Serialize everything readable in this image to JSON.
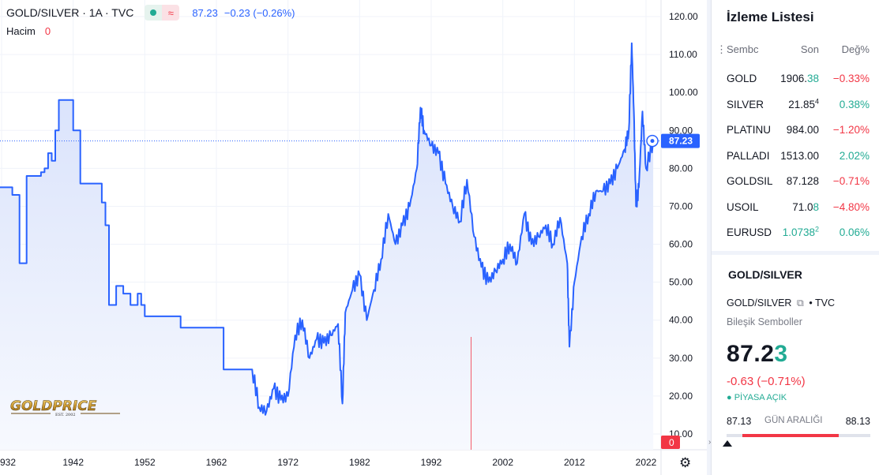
{
  "legend": {
    "title": "GOLD/SILVER · 1A · TVC",
    "approx": "≈",
    "price": "87.23",
    "change": "−0.23 (−0.26%)"
  },
  "volume": {
    "label": "Hacim",
    "value": "0"
  },
  "logo": {
    "text": "GOLDPRICE",
    "sub": "EST. 2002"
  },
  "colors": {
    "line": "#2962ff",
    "fill": "#e8eefc",
    "up": "#22ab94",
    "down": "#f23645"
  },
  "chart_data": {
    "type": "area",
    "x_ticks": [
      "932",
      "1942",
      "1952",
      "1962",
      "1972",
      "1982",
      "1992",
      "2002",
      "2012",
      "2022"
    ],
    "y_ticks": [
      "120.00",
      "110.00",
      "100.00",
      "90.00",
      "80.00",
      "70.00",
      "60.00",
      "50.00",
      "40.00",
      "30.00",
      "20.00",
      "10.00"
    ],
    "ylim": [
      10,
      120
    ],
    "xlim": [
      1930,
      2023.7
    ],
    "last_price_label": "87.23",
    "volume_badge": "0",
    "series": [
      {
        "x": [
          1930,
          1931,
          1933,
          1933.5,
          1934,
          1934.5,
          1935,
          1935.5,
          1937,
          1937.5,
          1938,
          1938.5,
          1939,
          1939.5,
          1940,
          1940.5,
          1941,
          1942,
          1942.5,
          1943,
          1944,
          1944.5,
          1945,
          1946,
          1946.5,
          1947,
          1948,
          1948.5,
          1949,
          1950,
          1951,
          1951.5,
          1952,
          1953,
          1954,
          1955,
          1956,
          1957,
          1958,
          1959,
          1960,
          1961,
          1962,
          1963,
          1964,
          1965,
          1966,
          1967,
          1968,
          1969,
          1970,
          1971,
          1972,
          1973,
          1974,
          1975,
          1976,
          1977,
          1978,
          1979,
          1979.6,
          1980,
          1981,
          1982,
          1983,
          1984,
          1985,
          1986,
          1987,
          1988,
          1989,
          1990,
          1990.5,
          1991,
          1992,
          1993,
          1994,
          1995,
          1996,
          1997,
          1998,
          1999,
          2000,
          2001,
          2002,
          2003,
          2004,
          2005,
          2006,
          2007,
          2008,
          2009,
          2010,
          2011,
          2011.3,
          2012,
          2013,
          2014,
          2015,
          2016,
          2017,
          2018,
          2019,
          2019.6,
          2020,
          2020.3,
          2020.6,
          2021,
          2021.5,
          2022,
          2023
        ],
        "y": [
          77,
          75,
          75,
          73,
          73,
          55,
          55,
          78,
          78,
          79,
          80,
          84,
          82,
          90,
          98,
          98,
          98,
          90,
          90,
          76,
          76,
          76,
          76,
          71,
          65,
          44,
          49,
          49,
          47,
          44,
          47,
          44,
          41,
          41,
          41,
          41,
          41,
          38,
          38,
          38,
          38,
          38,
          38,
          27,
          27,
          27,
          27,
          27,
          17,
          16,
          22,
          19,
          20,
          36,
          40,
          30,
          35,
          34,
          36,
          39,
          18,
          42,
          48,
          52,
          40,
          48,
          56,
          68,
          60,
          65,
          70,
          80,
          96,
          90,
          86,
          84,
          76,
          70,
          66,
          77,
          62,
          54,
          50,
          53,
          56,
          60,
          55,
          68,
          60,
          62,
          65,
          60,
          67,
          55,
          33,
          50,
          62,
          68,
          74,
          74,
          76,
          80,
          85,
          90,
          113,
          95,
          70,
          75,
          95,
          80,
          87.23
        ]
      }
    ]
  },
  "watchlist": {
    "title": "İzleme Listesi",
    "columns": {
      "symbol": "Sembc",
      "last": "Son",
      "change": "Değ%"
    },
    "rows": [
      {
        "symbol": "GOLD",
        "last_main": "1906.",
        "last_hi": "38",
        "hi_green": true,
        "change": "−0.33%",
        "dir": "down"
      },
      {
        "symbol": "SILVER",
        "last_main": "21.85",
        "last_hi": "4",
        "hi_green": false,
        "change": "0.38%",
        "dir": "up"
      },
      {
        "symbol": "PLATINU",
        "last_main": "984.00",
        "last_hi": "",
        "hi_green": false,
        "change": "−1.20%",
        "dir": "down"
      },
      {
        "symbol": "PALLADI",
        "last_main": "1513.00",
        "last_hi": "",
        "hi_green": false,
        "change": "2.02%",
        "dir": "up"
      },
      {
        "symbol": "GOLDSIL",
        "last_main": "87.128",
        "last_hi": "",
        "hi_green": false,
        "change": "−0.71%",
        "dir": "down"
      },
      {
        "symbol": "USOIL",
        "last_main": "71.0",
        "last_hi": "8",
        "hi_green": true,
        "change": "−4.80%",
        "dir": "down"
      },
      {
        "symbol": "EURUSD",
        "last_main": "1.0738",
        "last_hi": "2",
        "hi_green": true,
        "change": "0.06%",
        "dir": "up",
        "all_green": true
      }
    ]
  },
  "details": {
    "title": "GOLD/SILVER",
    "sub": "GOLD/SILVER",
    "exchange": "• TVC",
    "sub2": "Bileşik Semboller",
    "price_main": "87.2",
    "price_last": "3",
    "change": "-0.63 (−0.71%)",
    "status": "● PİYASA AÇIK",
    "range_low": "87.13",
    "range_label": "GÜN ARALIĞI",
    "range_high": "88.13",
    "range_position": 0.02
  }
}
